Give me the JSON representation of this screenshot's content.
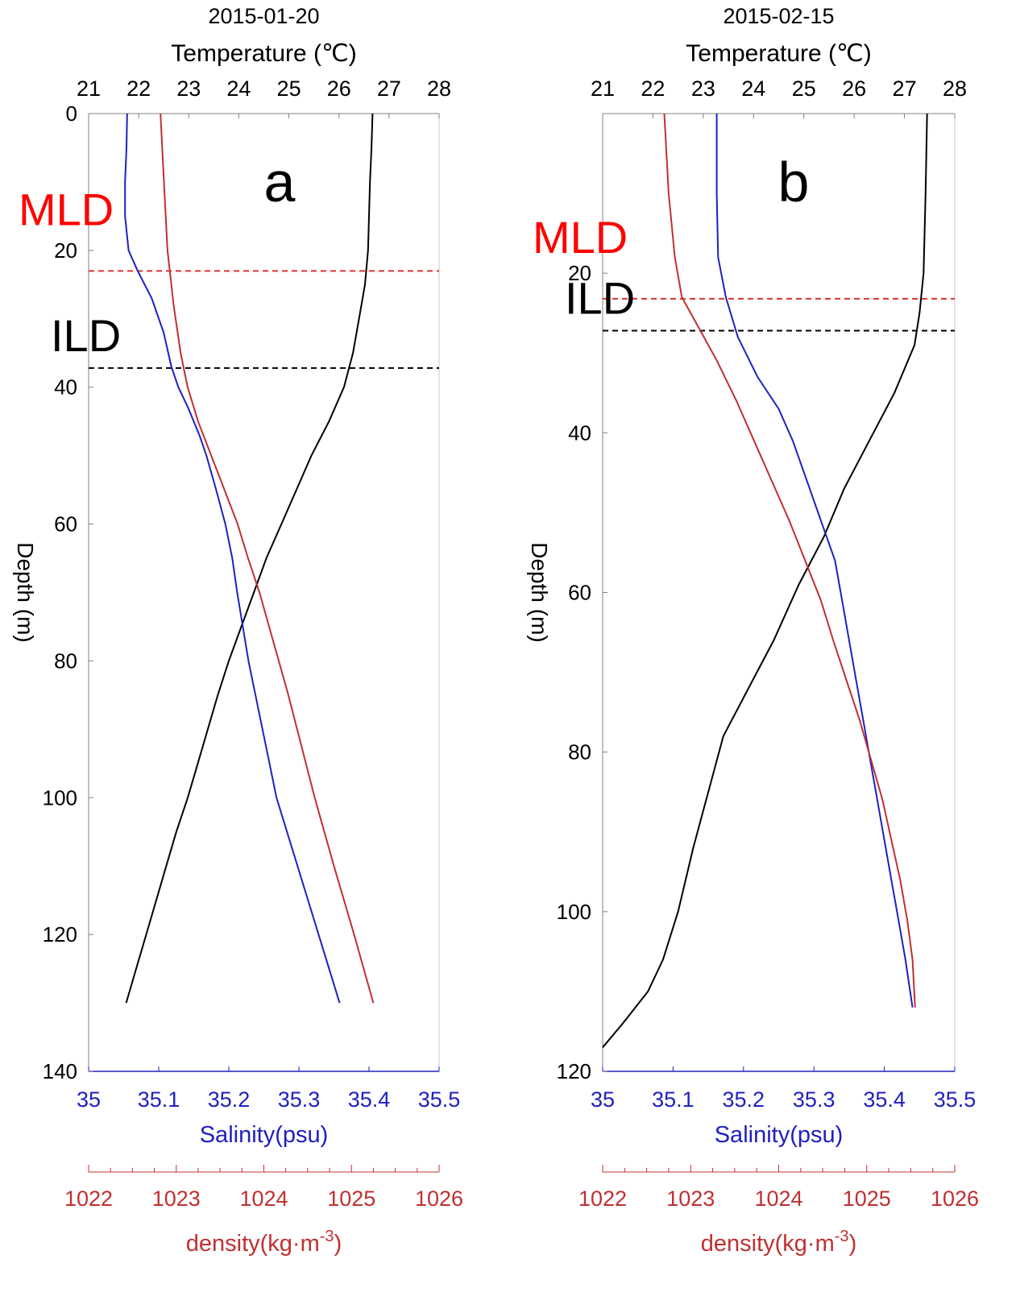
{
  "colors": {
    "temperature": "#000000",
    "salinity": "#2020c0",
    "density": "#c03030",
    "mld_text": "#ff0000",
    "ild_text": "#000000",
    "mld_line": "#e03030",
    "ild_line": "#000000"
  },
  "chart_data": [
    {
      "type": "line",
      "title": "2015-01-20",
      "panel_label": "a",
      "depth_axis": {
        "label": "Depth (m)",
        "range": [
          0,
          140
        ],
        "ticks": [
          "0",
          "20",
          "40",
          "60",
          "80",
          "100",
          "120",
          "140"
        ],
        "inverted": true
      },
      "temperature_axis": {
        "label": "Temperature (℃)",
        "position": "top",
        "range": [
          21,
          28
        ],
        "ticks": [
          "21",
          "22",
          "23",
          "24",
          "25",
          "26",
          "27",
          "28"
        ]
      },
      "salinity_axis": {
        "label": "Salinity(psu)",
        "position": "bottom",
        "range": [
          35,
          35.5
        ],
        "ticks": [
          "35",
          "35.1",
          "35.2",
          "35.3",
          "35.4",
          "35.5"
        ]
      },
      "density_axis": {
        "label": "density(kg·m",
        "label_sup": "-3",
        "label_close": ")",
        "position": "bottom",
        "range": [
          1022,
          1026
        ],
        "ticks": [
          "1022",
          "1023",
          "1024",
          "1025",
          "1026"
        ]
      },
      "mld": {
        "label": "MLD",
        "depth": 23
      },
      "ild": {
        "label": "ILD",
        "depth": 37.2
      },
      "series": [
        {
          "name": "Temperature",
          "axis": "temperature",
          "points": [
            [
              26.67,
              0
            ],
            [
              26.65,
              5
            ],
            [
              26.62,
              10
            ],
            [
              26.6,
              15
            ],
            [
              26.58,
              20
            ],
            [
              26.52,
              25
            ],
            [
              26.4,
              30
            ],
            [
              26.28,
              35
            ],
            [
              26.1,
              40
            ],
            [
              25.8,
              45
            ],
            [
              25.45,
              50
            ],
            [
              25.15,
              55
            ],
            [
              24.85,
              60
            ],
            [
              24.55,
              65
            ],
            [
              24.3,
              70
            ],
            [
              24.05,
              75
            ],
            [
              23.8,
              80
            ],
            [
              23.58,
              85
            ],
            [
              23.38,
              90
            ],
            [
              23.18,
              95
            ],
            [
              22.98,
              100
            ],
            [
              22.75,
              105
            ],
            [
              22.55,
              110
            ],
            [
              22.35,
              115
            ],
            [
              22.15,
              120
            ],
            [
              21.95,
              125
            ],
            [
              21.75,
              130
            ]
          ]
        },
        {
          "name": "Salinity",
          "axis": "salinity",
          "points": [
            [
              35.055,
              0
            ],
            [
              35.054,
              5
            ],
            [
              35.052,
              10
            ],
            [
              35.052,
              15
            ],
            [
              35.057,
              20
            ],
            [
              35.07,
              23
            ],
            [
              35.09,
              27
            ],
            [
              35.107,
              32
            ],
            [
              35.118,
              37
            ],
            [
              35.128,
              40
            ],
            [
              35.142,
              43
            ],
            [
              35.158,
              47
            ],
            [
              35.168,
              50
            ],
            [
              35.182,
              55
            ],
            [
              35.195,
              60
            ],
            [
              35.205,
              65
            ],
            [
              35.212,
              70
            ],
            [
              35.22,
              75
            ],
            [
              35.228,
              80
            ],
            [
              35.238,
              85
            ],
            [
              35.248,
              90
            ],
            [
              35.258,
              95
            ],
            [
              35.268,
              100
            ],
            [
              35.298,
              110
            ],
            [
              35.328,
              120
            ],
            [
              35.358,
              130
            ]
          ]
        },
        {
          "name": "Density",
          "axis": "density",
          "points": [
            [
              1022.82,
              0
            ],
            [
              1022.86,
              10
            ],
            [
              1022.9,
              20
            ],
            [
              1022.97,
              28
            ],
            [
              1023.05,
              35
            ],
            [
              1023.13,
              40
            ],
            [
              1023.25,
              45
            ],
            [
              1023.4,
              50
            ],
            [
              1023.55,
              55
            ],
            [
              1023.7,
              60
            ],
            [
              1023.82,
              65
            ],
            [
              1023.95,
              70
            ],
            [
              1024.06,
              75
            ],
            [
              1024.17,
              80
            ],
            [
              1024.28,
              85
            ],
            [
              1024.38,
              90
            ],
            [
              1024.48,
              95
            ],
            [
              1024.58,
              100
            ],
            [
              1024.8,
              110
            ],
            [
              1025.03,
              120
            ],
            [
              1025.25,
              130
            ]
          ]
        }
      ]
    },
    {
      "type": "line",
      "title": "2015-02-15",
      "panel_label": "b",
      "depth_axis": {
        "label": "Depth (m)",
        "range": [
          0,
          120
        ],
        "ticks": [
          "20",
          "40",
          "60",
          "80",
          "100",
          "120"
        ],
        "inverted": true
      },
      "temperature_axis": {
        "label": "Temperature (℃)",
        "position": "top",
        "range": [
          21,
          28
        ],
        "ticks": [
          "21",
          "22",
          "23",
          "24",
          "25",
          "26",
          "27",
          "28"
        ]
      },
      "salinity_axis": {
        "label": "Salinity(psu)",
        "position": "bottom",
        "range": [
          35,
          35.5
        ],
        "ticks": [
          "35",
          "35.1",
          "35.2",
          "35.3",
          "35.4",
          "35.5"
        ]
      },
      "density_axis": {
        "label": "density(kg·m",
        "label_sup": "-3",
        "label_close": ")",
        "position": "bottom",
        "range": [
          1022,
          1026
        ],
        "ticks": [
          "1022",
          "1023",
          "1024",
          "1025",
          "1026"
        ]
      },
      "mld": {
        "label": "MLD",
        "depth": 23.2
      },
      "ild": {
        "label": "ILD",
        "depth": 27.2
      },
      "series": [
        {
          "name": "Temperature",
          "axis": "temperature",
          "points": [
            [
              27.45,
              0
            ],
            [
              27.42,
              10
            ],
            [
              27.38,
              20
            ],
            [
              27.3,
              25
            ],
            [
              27.2,
              29
            ],
            [
              26.8,
              35
            ],
            [
              26.3,
              41
            ],
            [
              25.8,
              47
            ],
            [
              25.4,
              53
            ],
            [
              24.9,
              59
            ],
            [
              24.4,
              66
            ],
            [
              23.9,
              72
            ],
            [
              23.4,
              78
            ],
            [
              23.1,
              85
            ],
            [
              22.8,
              92
            ],
            [
              22.5,
              100
            ],
            [
              22.2,
              106
            ],
            [
              21.9,
              110
            ],
            [
              21.4,
              114
            ],
            [
              21.0,
              117
            ]
          ]
        },
        {
          "name": "Salinity",
          "axis": "salinity",
          "points": [
            [
              35.162,
              0
            ],
            [
              35.162,
              10
            ],
            [
              35.164,
              18
            ],
            [
              35.175,
              23
            ],
            [
              35.192,
              28
            ],
            [
              35.22,
              33
            ],
            [
              35.25,
              37
            ],
            [
              35.27,
              41
            ],
            [
              35.29,
              46
            ],
            [
              35.31,
              51
            ],
            [
              35.33,
              56
            ],
            [
              35.34,
              61
            ],
            [
              35.35,
              66
            ],
            [
              35.36,
              71
            ],
            [
              35.37,
              76
            ],
            [
              35.38,
              81
            ],
            [
              35.39,
              86
            ],
            [
              35.4,
              91
            ],
            [
              35.41,
              96
            ],
            [
              35.42,
              101
            ],
            [
              35.43,
              106
            ],
            [
              35.44,
              112
            ]
          ]
        },
        {
          "name": "Density",
          "axis": "density",
          "points": [
            [
              1022.7,
              0
            ],
            [
              1022.75,
              10
            ],
            [
              1022.82,
              18
            ],
            [
              1022.9,
              23
            ],
            [
              1023.1,
              27
            ],
            [
              1023.3,
              31
            ],
            [
              1023.52,
              36
            ],
            [
              1023.72,
              41
            ],
            [
              1023.92,
              46
            ],
            [
              1024.12,
              51
            ],
            [
              1024.3,
              56
            ],
            [
              1024.48,
              61
            ],
            [
              1024.62,
              66
            ],
            [
              1024.77,
              71
            ],
            [
              1024.92,
              76
            ],
            [
              1025.05,
              81
            ],
            [
              1025.18,
              86
            ],
            [
              1025.28,
              91
            ],
            [
              1025.38,
              96
            ],
            [
              1025.46,
              101
            ],
            [
              1025.52,
              106
            ],
            [
              1025.55,
              112
            ]
          ]
        }
      ]
    }
  ]
}
